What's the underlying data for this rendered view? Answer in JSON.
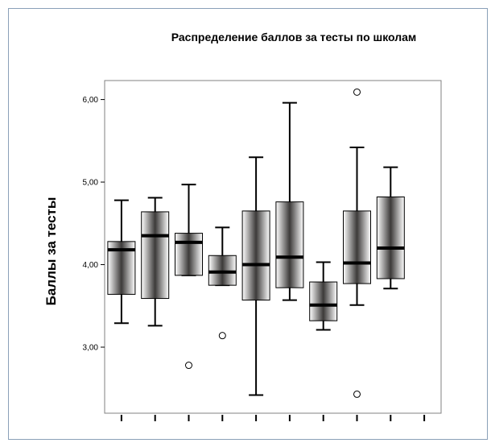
{
  "chart_data": {
    "type": "boxplot",
    "title": "Распределение баллов за тесты по школам",
    "xlabel": "",
    "ylabel": "Баллы за тесты",
    "ylim": [
      2.2,
      6.23
    ],
    "yticks": [
      3.0,
      4.0,
      5.0,
      6.0
    ],
    "ytick_labels": [
      "3,00",
      "4,00",
      "5,00",
      "6,00"
    ],
    "grid": false,
    "box_color": "#c8c4c2",
    "boxes": [
      {
        "whisker_low": 3.29,
        "q1": 3.64,
        "median": 4.18,
        "q3": 4.28,
        "whisker_high": 4.78,
        "outliers": []
      },
      {
        "whisker_low": 3.26,
        "q1": 3.59,
        "median": 4.35,
        "q3": 4.64,
        "whisker_high": 4.81,
        "outliers": []
      },
      {
        "whisker_low": 3.87,
        "q1": 3.87,
        "median": 4.27,
        "q3": 4.38,
        "whisker_high": 4.97,
        "outliers": [
          2.78
        ]
      },
      {
        "whisker_low": 3.75,
        "q1": 3.75,
        "median": 3.91,
        "q3": 4.11,
        "whisker_high": 4.45,
        "outliers": [
          3.14
        ]
      },
      {
        "whisker_low": 2.42,
        "q1": 3.57,
        "median": 4.0,
        "q3": 4.65,
        "whisker_high": 5.3,
        "outliers": []
      },
      {
        "whisker_low": 3.57,
        "q1": 3.72,
        "median": 4.09,
        "q3": 4.76,
        "whisker_high": 5.96,
        "outliers": []
      },
      {
        "whisker_low": 3.21,
        "q1": 3.32,
        "median": 3.51,
        "q3": 3.79,
        "whisker_high": 4.03,
        "outliers": []
      },
      {
        "whisker_low": 3.51,
        "q1": 3.77,
        "median": 4.02,
        "q3": 4.65,
        "whisker_high": 5.42,
        "outliers": [
          6.09,
          2.43
        ]
      },
      {
        "whisker_low": 3.71,
        "q1": 3.83,
        "median": 4.2,
        "q3": 4.82,
        "whisker_high": 5.18,
        "outliers": []
      }
    ],
    "x_tick_count": 10
  }
}
